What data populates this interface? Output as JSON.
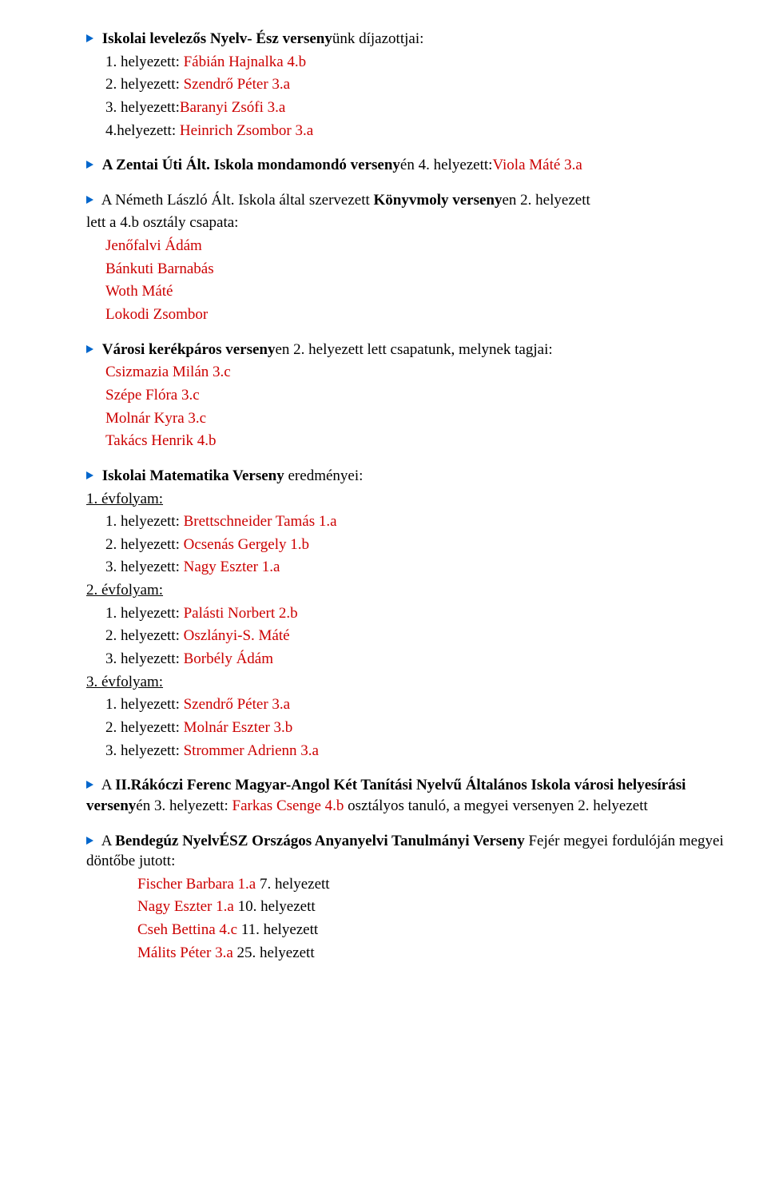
{
  "s1": {
    "title_a": "Iskolai levelezős Nyelv- Ész verseny",
    "title_b": "ünk díjazottjai:",
    "p1a": "1. helyezett: ",
    "p1b": "Fábián Hajnalka 4.b",
    "p2a": "2. helyezett: ",
    "p2b": "Szendrő Péter 3.a",
    "p3a": "3. helyezett:",
    "p3b": "Baranyi Zsófi 3.a",
    "p4a": "4.helyezett: ",
    "p4b": "Heinrich Zsombor 3.a"
  },
  "s2": {
    "l1a": "A Zentai Úti Ált. Iskola mondamondó verseny",
    "l1b": "én 4. helyezett:",
    "l1c": "Viola Máté 3.a"
  },
  "s3": {
    "l1a": "A Németh László Ált. Iskola által szervezett ",
    "l1b": "Könyvmoly verseny",
    "l1c": "en 2. helyezett",
    "l2": "lett a 4.b osztály csapata:",
    "m1": "Jenőfalvi Ádám",
    "m2": "Bánkuti Barnabás",
    "m3": "Woth Máté",
    "m4": "Lokodi Zsombor"
  },
  "s4": {
    "l1a": "Városi kerékpáros verseny",
    "l1b": "en 2. helyezett lett csapatunk, melynek tagjai:",
    "m1": "Csizmazia Milán 3.c",
    "m2": "Szépe Flóra 3.c",
    "m3": "Molnár Kyra 3.c",
    "m4": "Takács Henrik 4.b"
  },
  "s5": {
    "title_a": "Iskolai Matematika Verseny",
    "title_b": " eredményei:",
    "g1_h": "1. évfolyam:",
    "g1_1a": "1. helyezett: ",
    "g1_1b": "Brettschneider Tamás 1.a",
    "g1_2a": "2. helyezett: ",
    "g1_2b": "Ocsenás Gergely 1.b",
    "g1_3a": "3. helyezett: ",
    "g1_3b": "Nagy Eszter 1.a",
    "g2_h": "2. évfolyam:",
    "g2_1a": "1. helyezett: ",
    "g2_1b": "Palásti Norbert 2.b",
    "g2_2a": "2. helyezett: ",
    "g2_2b": "Oszlányi-S. Máté",
    "g2_3a": "3. helyezett: ",
    "g2_3b": "Borbély Ádám",
    "g3_h": "3. évfolyam:",
    "g3_1a": "1. helyezett: ",
    "g3_1b": "Szendrő Péter 3.a",
    "g3_2a": "2. helyezett: ",
    "g3_2b": "Molnár Eszter 3.b",
    "g3_3a": "3. helyezett: ",
    "g3_3b": "Strommer Adrienn 3.a"
  },
  "s6": {
    "l1a": "A ",
    "l1b": "II.Rákóczi Ferenc Magyar-Angol Két Tanítási Nyelvű Általános Iskola városi helyesírási verseny",
    "l1c": "én 3. helyezett: ",
    "l1d": "Farkas Csenge 4.b",
    "l1e": " osztályos tanuló, a megyei versenyen 2. helyezett"
  },
  "s7": {
    "l1a": "A ",
    "l1b": "Bendegúz NyelvÉSZ Országos Anyanyelvi Tanulmányi Verseny",
    "l1c": " Fejér megyei fordulóján megyei döntőbe jutott:",
    "m1a": "Fischer Barbara 1.a",
    "m1b": " 7. helyezett",
    "m2a": "Nagy Eszter 1.a",
    "m2b": " 10. helyezett",
    "m3a": "Cseh Bettina 4.c",
    "m3b": " 11. helyezett",
    "m4a": "Málits Péter 3.a",
    "m4b": " 25. helyezett"
  }
}
